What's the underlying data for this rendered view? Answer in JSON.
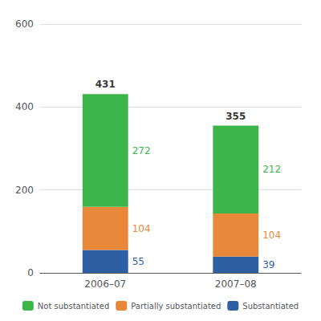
{
  "chart_data": {
    "type": "bar",
    "stacked": true,
    "categories": [
      "2006–07",
      "2007–08"
    ],
    "series": [
      {
        "name": "Substantiated",
        "color": "#2e5fa3",
        "values": [
          55,
          39
        ]
      },
      {
        "name": "Partially substantiated",
        "color": "#e8883a",
        "values": [
          104,
          104
        ]
      },
      {
        "name": "Not substantiated",
        "color": "#3cb54a",
        "values": [
          272,
          212
        ]
      }
    ],
    "totals": [
      431,
      355
    ],
    "ylim": [
      0,
      600
    ],
    "yticks": [
      0,
      200,
      400,
      600
    ],
    "grid": true,
    "legend": "bottom",
    "data_labels": true
  }
}
